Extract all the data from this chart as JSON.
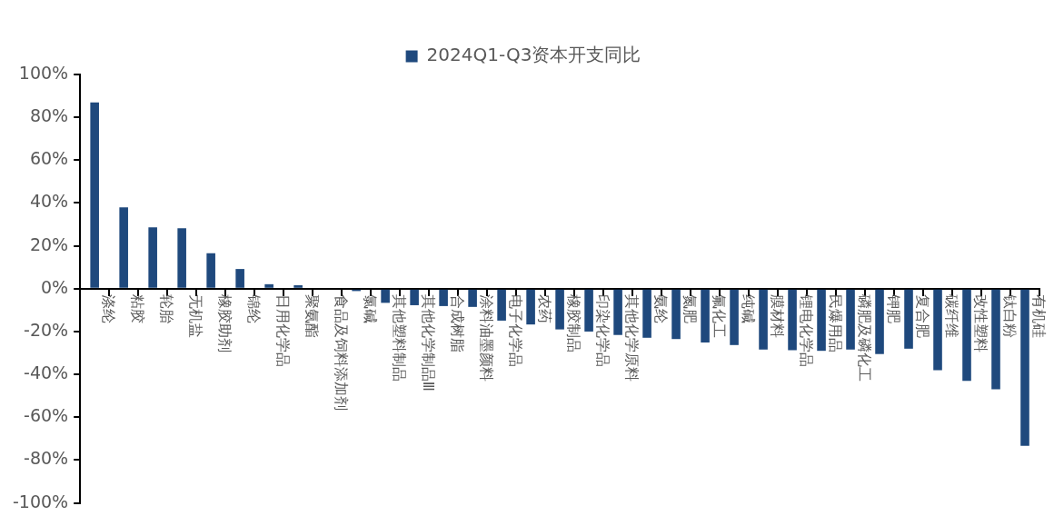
{
  "chart_data": {
    "type": "bar",
    "categories": [
      "涤纶",
      "粘胶",
      "轮胎",
      "无机盐",
      "橡胶助剂",
      "锦纶",
      "日用化学品",
      "聚氨酯",
      "食品及饲料添加剂",
      "氯碱",
      "其他塑料制品",
      "其他化学制品Ⅲ",
      "合成树脂",
      "涂料油墨颜料",
      "电子化学品",
      "农药",
      "橡胶制品",
      "印染化学品",
      "其他化学原料",
      "氨纶",
      "氮肥",
      "氟化工",
      "纯碱",
      "膜材料",
      "锂电化学品",
      "民爆用品",
      "磷肥及磷化工",
      "钾肥",
      "复合肥",
      "碳纤维",
      "改性塑料",
      "钛白粉",
      "有机硅"
    ],
    "series": [
      {
        "name": "2024Q1-Q3资本开支同比",
        "color": "#1f497d",
        "values": [
          87,
          38,
          28.7,
          28.2,
          16.6,
          9.2,
          2.1,
          1.6,
          0,
          -1.1,
          -6.6,
          -7.7,
          -8.1,
          -8.5,
          -14.9,
          -16.7,
          -19,
          -20,
          -21.6,
          -22.9,
          -23.5,
          -25.1,
          -26.3,
          -28.4,
          -28.7,
          -29,
          -28.4,
          -30.5,
          -28,
          -38,
          -43,
          -46.9,
          -73.3
        ]
      }
    ],
    "ylim": [
      -100,
      100
    ],
    "yticks": [
      {
        "value": -100,
        "label": "-100%"
      },
      {
        "value": -80,
        "label": "-80%"
      },
      {
        "value": -60,
        "label": "-60%"
      },
      {
        "value": -40,
        "label": "-40%"
      },
      {
        "value": -20,
        "label": "-20%"
      },
      {
        "value": 0,
        "label": "0%"
      },
      {
        "value": 20,
        "label": "20%"
      },
      {
        "value": 40,
        "label": "40%"
      },
      {
        "value": 60,
        "label": "60%"
      },
      {
        "value": 80,
        "label": "80%"
      },
      {
        "value": 100,
        "label": "100%"
      }
    ],
    "grid": false,
    "legend": "top"
  }
}
